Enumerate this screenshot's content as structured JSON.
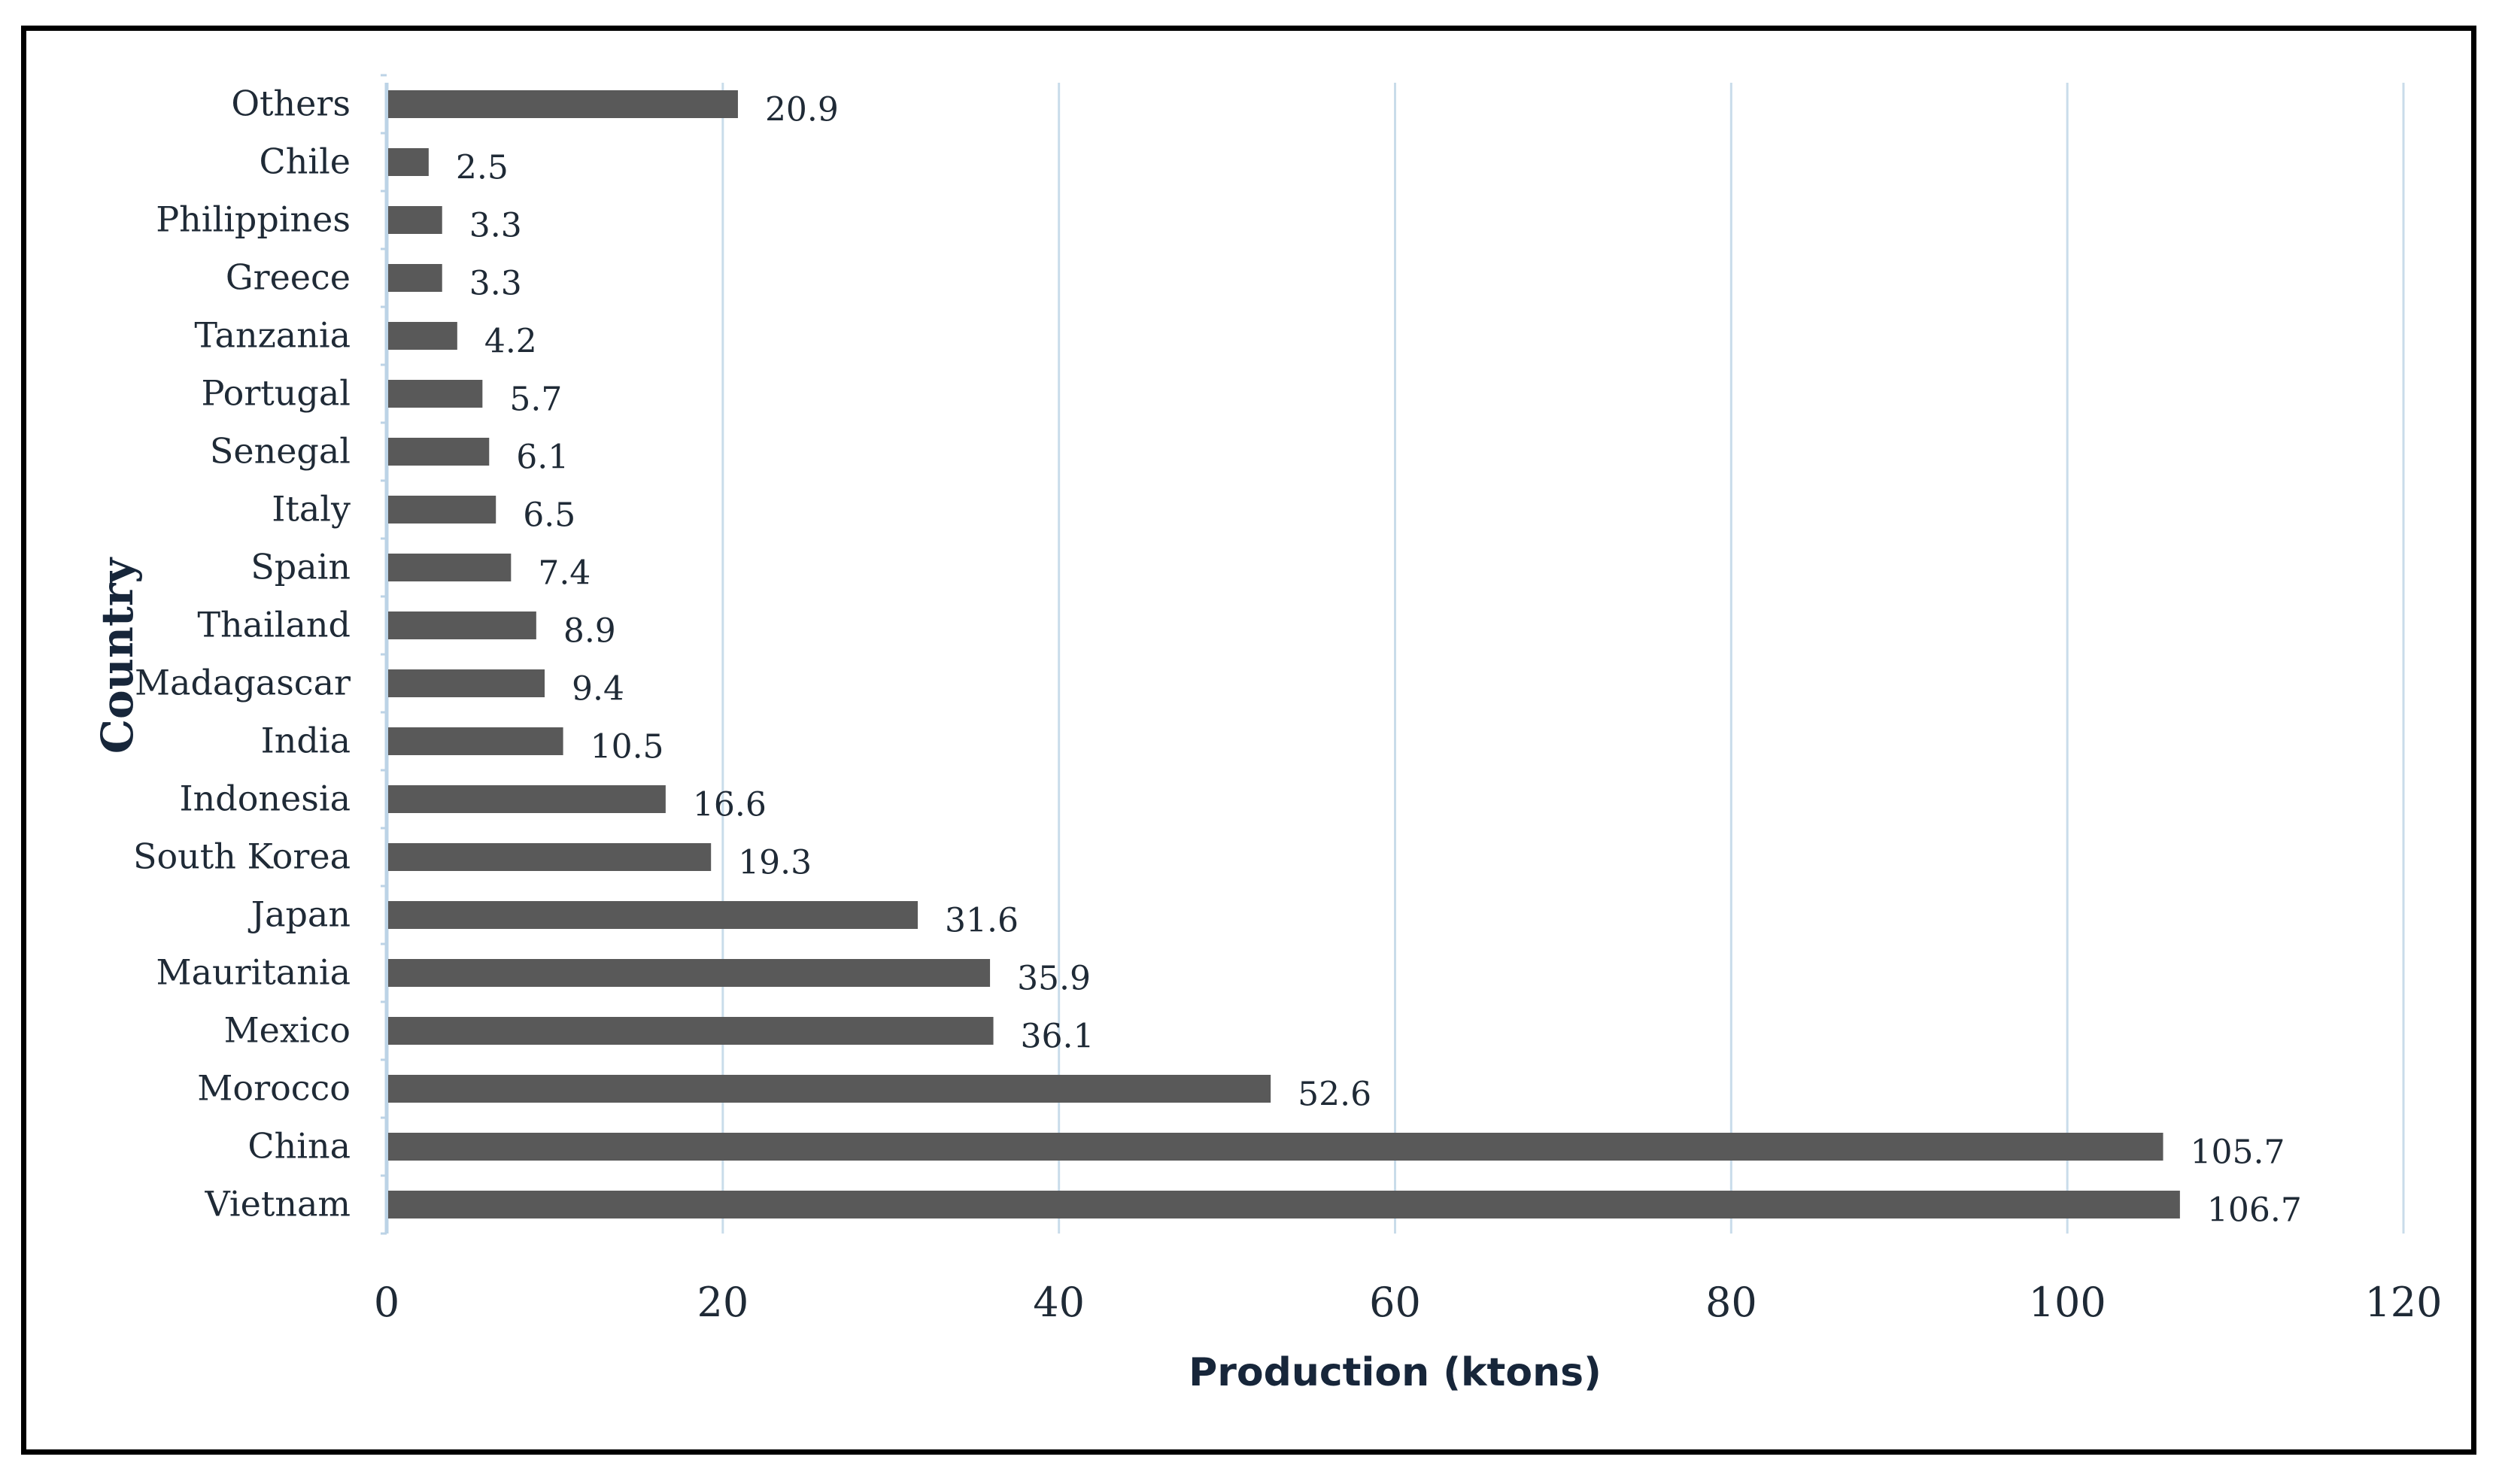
{
  "chart_data": {
    "type": "bar",
    "orientation": "horizontal",
    "title": "",
    "xlabel": "Production (ktons)",
    "ylabel": "Country",
    "xlim": [
      0,
      120
    ],
    "xticks": [
      0,
      20,
      40,
      60,
      80,
      100,
      120
    ],
    "grid": "vertical",
    "legend": "none",
    "bar_color": "#595959",
    "grid_color": "#c9dcea",
    "categories": [
      "Vietnam",
      "China",
      "Morocco",
      "Mexico",
      "Mauritania",
      "Japan",
      "South Korea",
      "Indonesia",
      "India",
      "Madagascar",
      "Thailand",
      "Spain",
      "Italy",
      "Senegal",
      "Portugal",
      "Tanzania",
      "Greece",
      "Philippines",
      "Chile",
      "Others"
    ],
    "values": [
      106.7,
      105.7,
      52.6,
      36.1,
      35.9,
      31.6,
      19.3,
      16.6,
      10.5,
      9.4,
      8.9,
      7.4,
      6.5,
      6.1,
      5.7,
      4.2,
      3.3,
      3.3,
      2.5,
      20.9
    ],
    "value_labels": [
      "106.7",
      "105.7",
      "52.6",
      "36.1",
      "35.9",
      "31.6",
      "19.3",
      "16.6",
      "10.5",
      "9.4",
      "8.9",
      "7.4",
      "6.5",
      "6.1",
      "5.7",
      "4.2",
      "3.3",
      "3.3",
      "2.5",
      "20.9"
    ]
  }
}
